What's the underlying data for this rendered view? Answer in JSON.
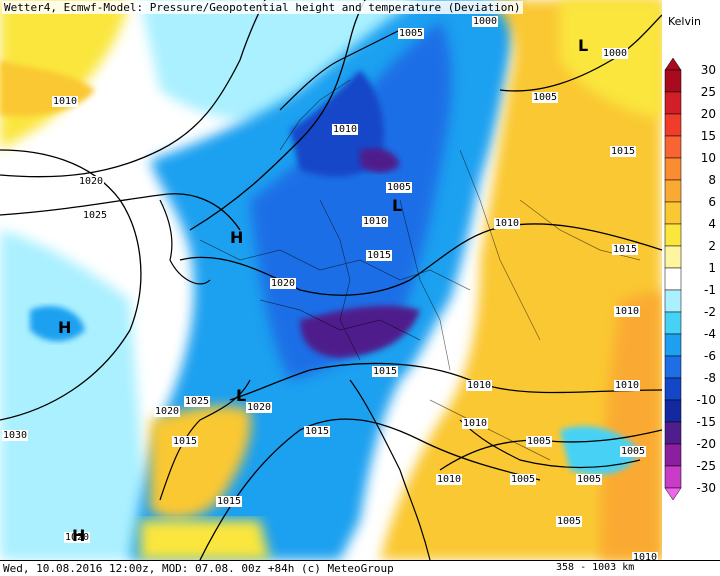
{
  "title": "Wetter4, Ecmwf-Model: Pressure/Geopotential height and temperature (Deviation)",
  "legend": {
    "unit": "Kelvin",
    "levels": [
      "30",
      "25",
      "20",
      "15",
      "10",
      "8",
      "6",
      "4",
      "2",
      "1",
      "-1",
      "-2",
      "-4",
      "-6",
      "-8",
      "-10",
      "-15",
      "-20",
      "-25",
      "-30"
    ],
    "colors": [
      "#aa0a1e",
      "#d21e28",
      "#f03c28",
      "#f86432",
      "#fa8c32",
      "#faaa32",
      "#fac832",
      "#fae63c",
      "#fff5a0",
      "#ffffff",
      "#aaf0ff",
      "#46d2f5",
      "#1ea0f0",
      "#1e6ee6",
      "#1446c8",
      "#1428a0",
      "#501e8c",
      "#8c1ea0",
      "#c83cc8",
      "#f064f0"
    ]
  },
  "isobars": [
    {
      "text": "1000"
    },
    {
      "text": "1005"
    },
    {
      "text": "1000"
    },
    {
      "text": "1005"
    },
    {
      "text": "1010"
    },
    {
      "text": "1015"
    },
    {
      "text": "1010"
    },
    {
      "text": "1005"
    },
    {
      "text": "1020"
    },
    {
      "text": "1025"
    },
    {
      "text": "1010"
    },
    {
      "text": "1015"
    },
    {
      "text": "1010"
    },
    {
      "text": "1015"
    },
    {
      "text": "1020"
    },
    {
      "text": "1015"
    },
    {
      "text": "1010"
    },
    {
      "text": "1010"
    },
    {
      "text": "1010"
    },
    {
      "text": "1025"
    },
    {
      "text": "1020"
    },
    {
      "text": "1020"
    },
    {
      "text": "1015"
    },
    {
      "text": "1015"
    },
    {
      "text": "1030"
    },
    {
      "text": "1010"
    },
    {
      "text": "1010"
    },
    {
      "text": "1005"
    },
    {
      "text": "1005"
    },
    {
      "text": "1005"
    },
    {
      "text": "1005"
    },
    {
      "text": "1005"
    },
    {
      "text": "1015"
    },
    {
      "text": "1020"
    },
    {
      "text": "1010"
    }
  ],
  "pressure_markers": [
    {
      "text": "L"
    },
    {
      "text": "L"
    },
    {
      "text": "H"
    },
    {
      "text": "H"
    },
    {
      "text": "L"
    },
    {
      "text": "H"
    }
  ],
  "status": {
    "left": "Wed, 10.08.2016 12:00z, MOD: 07.08. 00z +84h (c) MeteoGroup",
    "scale": "358 - 1003 km"
  },
  "colors": {
    "sea_neutral": "#ffffff",
    "land_warm": "#fac832",
    "cold_core": "#1e6ee6",
    "cold_deep": "#501e8c"
  }
}
